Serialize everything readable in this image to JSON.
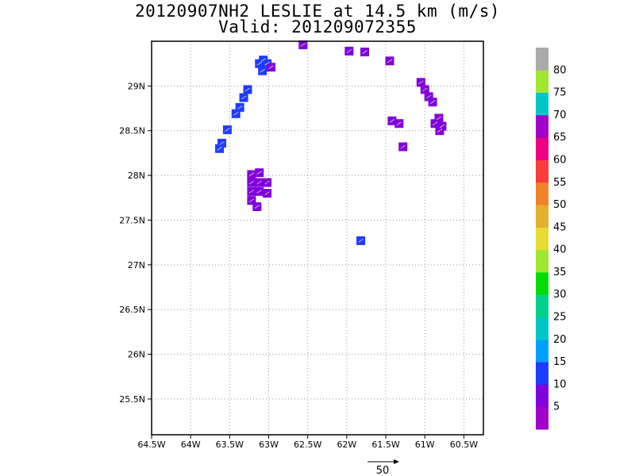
{
  "title_line1": "20120907NH2 LESLIE at 14.5 km (m/s)",
  "title_line2": "Valid: 201209072355",
  "chart_data": {
    "type": "heatmap",
    "title": "20120907NH2 LESLIE at 14.5 km (m/s)",
    "subtitle": "Valid: 201209072355",
    "xlim": [
      -64.5,
      -60.25
    ],
    "ylim": [
      25.1,
      29.5
    ],
    "x_ticks": [
      -64.5,
      -64,
      -63.5,
      -63,
      -62.5,
      -62,
      -61.5,
      -61,
      -60.5
    ],
    "x_tick_labels": [
      "64.5W",
      "64W",
      "63.5W",
      "63W",
      "62.5W",
      "62W",
      "61.5W",
      "61W",
      "60.5W"
    ],
    "y_ticks": [
      25.5,
      26,
      26.5,
      27,
      27.5,
      28,
      28.5,
      29
    ],
    "y_tick_labels": [
      "25.5N",
      "26N",
      "26.5N",
      "27N",
      "27.5N",
      "28N",
      "28.5N",
      "29N"
    ],
    "grid": true,
    "colorbar": {
      "labels": [
        "5",
        "10",
        "15",
        "20",
        "25",
        "30",
        "35",
        "40",
        "45",
        "50",
        "55",
        "60",
        "65",
        "70",
        "75",
        "80"
      ],
      "colors": [
        "#a000c8",
        "#8200dc",
        "#1e3cff",
        "#00a0ff",
        "#00c8c8",
        "#00d28c",
        "#00dc00",
        "#a0e632",
        "#e6dc32",
        "#e6af2d",
        "#f08228",
        "#fa3c3c",
        "#f00082",
        "#a000c8",
        "#00c8c8",
        "#a0e632",
        "#aaaaaa"
      ]
    },
    "vector_scale": {
      "label": "50",
      "value": 50
    },
    "cells": [
      {
        "lon": -62.56,
        "lat": 29.46,
        "v": 8
      },
      {
        "lon": -61.97,
        "lat": 29.39,
        "v": 7
      },
      {
        "lon": -61.77,
        "lat": 29.38,
        "v": 7
      },
      {
        "lon": -61.45,
        "lat": 29.28,
        "v": 8
      },
      {
        "lon": -63.07,
        "lat": 29.29,
        "v": 11
      },
      {
        "lon": -63.12,
        "lat": 29.25,
        "v": 11
      },
      {
        "lon": -63.02,
        "lat": 29.25,
        "v": 11
      },
      {
        "lon": -62.97,
        "lat": 29.21,
        "v": 6
      },
      {
        "lon": -63.08,
        "lat": 29.17,
        "v": 11
      },
      {
        "lon": -63.27,
        "lat": 28.96,
        "v": 12
      },
      {
        "lon": -63.32,
        "lat": 28.87,
        "v": 12
      },
      {
        "lon": -63.37,
        "lat": 28.76,
        "v": 12
      },
      {
        "lon": -63.42,
        "lat": 28.69,
        "v": 12
      },
      {
        "lon": -63.53,
        "lat": 28.51,
        "v": 13
      },
      {
        "lon": -63.6,
        "lat": 28.36,
        "v": 12
      },
      {
        "lon": -63.63,
        "lat": 28.3,
        "v": 12
      },
      {
        "lon": -61.05,
        "lat": 29.04,
        "v": 8
      },
      {
        "lon": -61.0,
        "lat": 28.96,
        "v": 7
      },
      {
        "lon": -60.95,
        "lat": 28.88,
        "v": 7
      },
      {
        "lon": -60.9,
        "lat": 28.82,
        "v": 7
      },
      {
        "lon": -61.42,
        "lat": 28.61,
        "v": 7
      },
      {
        "lon": -61.33,
        "lat": 28.58,
        "v": 7
      },
      {
        "lon": -60.82,
        "lat": 28.64,
        "v": 7
      },
      {
        "lon": -60.87,
        "lat": 28.58,
        "v": 6
      },
      {
        "lon": -60.78,
        "lat": 28.55,
        "v": 7
      },
      {
        "lon": -60.81,
        "lat": 28.5,
        "v": 7
      },
      {
        "lon": -61.28,
        "lat": 28.32,
        "v": 8
      },
      {
        "lon": -63.22,
        "lat": 28.01,
        "v": 7
      },
      {
        "lon": -63.12,
        "lat": 28.03,
        "v": 7
      },
      {
        "lon": -63.22,
        "lat": 27.92,
        "v": 7
      },
      {
        "lon": -63.12,
        "lat": 27.92,
        "v": 7
      },
      {
        "lon": -63.02,
        "lat": 27.92,
        "v": 7
      },
      {
        "lon": -63.22,
        "lat": 27.82,
        "v": 7
      },
      {
        "lon": -63.12,
        "lat": 27.82,
        "v": 8
      },
      {
        "lon": -63.02,
        "lat": 27.8,
        "v": 7
      },
      {
        "lon": -63.22,
        "lat": 27.72,
        "v": 7
      },
      {
        "lon": -63.15,
        "lat": 27.65,
        "v": 7
      },
      {
        "lon": -61.82,
        "lat": 27.27,
        "v": 12
      }
    ]
  }
}
